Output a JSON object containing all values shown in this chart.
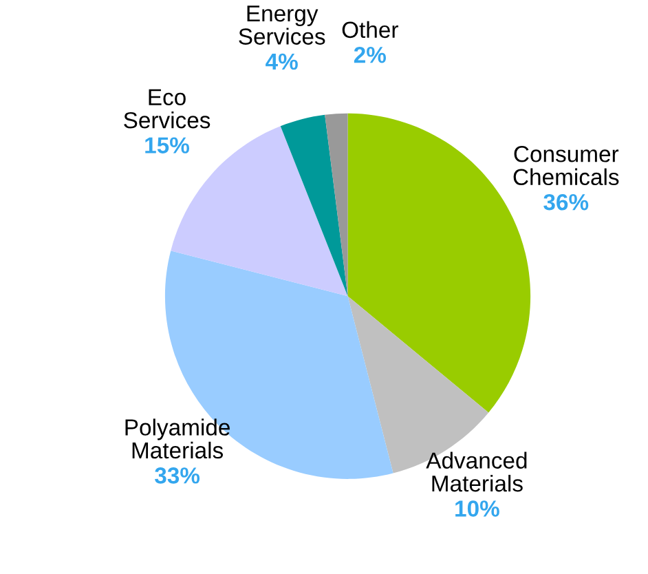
{
  "chart_data": {
    "type": "pie",
    "categories": [
      "Consumer\nChemicals",
      "Advanced\nMaterials",
      "Polyamide\nMaterials",
      "Eco\nServices",
      "Energy\nServices",
      "Other"
    ],
    "values": [
      36,
      10,
      33,
      15,
      4,
      2
    ],
    "colors": [
      "#99cc00",
      "#c0c0c0",
      "#99ccff",
      "#ccccff",
      "#009999",
      "#999999"
    ],
    "value_labels": [
      "36%",
      "10%",
      "33%",
      "15%",
      "4%",
      "2%"
    ]
  }
}
